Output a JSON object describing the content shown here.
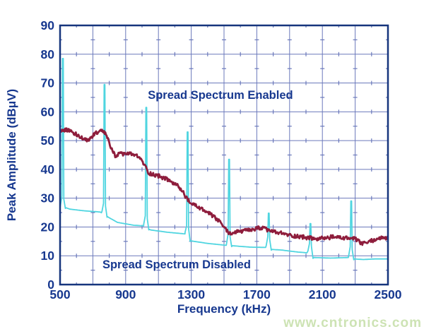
{
  "watermark": "www.cntronics.com",
  "colors": {
    "background": "#ffffff",
    "axis_border": "#16357d",
    "grid": "#6b79bb",
    "label_text": "#17388f",
    "series_enabled": "#8e1d3c",
    "series_disabled": "#4fd5e0",
    "watermark": "#cde3b4"
  },
  "chart_data": {
    "type": "line",
    "title": "",
    "xlabel": "Frequency (kHz)",
    "ylabel": "Peak Amplitude (dBμV)",
    "xlim": [
      500,
      2500
    ],
    "ylim": [
      0,
      90
    ],
    "x_tick_labels": [
      500,
      900,
      1300,
      1700,
      2100,
      2500
    ],
    "x_gridline_step_khz": 200,
    "x_minor_tick_step_khz": 100,
    "y_tick_labels": [
      0,
      10,
      20,
      30,
      40,
      50,
      60,
      70,
      80,
      90
    ],
    "y_minor_tick_step_db": 5,
    "grid": "on",
    "legend_position": "none",
    "annotations": [
      {
        "text": "Spread Spectrum Enabled",
        "x_khz": 1478,
        "y_db": 64.5
      },
      {
        "text": "Spread Spectrum Disabled",
        "x_khz": 1211,
        "y_db": 5.6
      }
    ],
    "series": [
      {
        "name": "Spread Spectrum Enabled",
        "style": "noisy-band",
        "color_key": "series_enabled",
        "noise_amplitude_db": 0.7,
        "sample_step_khz": 4,
        "trend": [
          [
            500,
            53.5
          ],
          [
            545,
            53.8
          ],
          [
            580,
            52.8
          ],
          [
            615,
            51.6
          ],
          [
            650,
            50.2
          ],
          [
            670,
            50.0
          ],
          [
            695,
            51.5
          ],
          [
            720,
            52.8
          ],
          [
            755,
            53.2
          ],
          [
            780,
            52.2
          ],
          [
            795,
            50.0
          ],
          [
            815,
            46.8
          ],
          [
            835,
            44.8
          ],
          [
            860,
            45.2
          ],
          [
            900,
            45.5
          ],
          [
            950,
            45.2
          ],
          [
            990,
            43.8
          ],
          [
            1015,
            41.5
          ],
          [
            1040,
            38.8
          ],
          [
            1070,
            38.2
          ],
          [
            1110,
            37.6
          ],
          [
            1160,
            36.3
          ],
          [
            1210,
            34.6
          ],
          [
            1250,
            32.2
          ],
          [
            1275,
            29.6
          ],
          [
            1300,
            28.0
          ],
          [
            1330,
            27.4
          ],
          [
            1370,
            26.0
          ],
          [
            1410,
            24.6
          ],
          [
            1450,
            23.0
          ],
          [
            1490,
            20.8
          ],
          [
            1520,
            18.4
          ],
          [
            1545,
            17.7
          ],
          [
            1575,
            18.3
          ],
          [
            1620,
            18.6
          ],
          [
            1670,
            18.9
          ],
          [
            1720,
            19.8
          ],
          [
            1765,
            19.0
          ],
          [
            1810,
            18.2
          ],
          [
            1860,
            17.7
          ],
          [
            1910,
            17.0
          ],
          [
            1960,
            16.7
          ],
          [
            2010,
            16.3
          ],
          [
            2060,
            15.8
          ],
          [
            2110,
            16.1
          ],
          [
            2160,
            16.5
          ],
          [
            2210,
            16.3
          ],
          [
            2260,
            16.1
          ],
          [
            2300,
            15.8
          ],
          [
            2345,
            14.1
          ],
          [
            2390,
            15.0
          ],
          [
            2445,
            16.1
          ],
          [
            2500,
            16.2
          ]
        ]
      },
      {
        "name": "Spread Spectrum Disabled",
        "style": "spiky",
        "color_key": "series_disabled",
        "baseline": [
          [
            500,
            26.5
          ],
          [
            530,
            26.8
          ],
          [
            560,
            26.2
          ],
          [
            650,
            25.6
          ],
          [
            745,
            25.2
          ],
          [
            800,
            23.2
          ],
          [
            850,
            21.6
          ],
          [
            950,
            20.6
          ],
          [
            1012,
            20.4
          ],
          [
            1050,
            19.0
          ],
          [
            1150,
            18.2
          ],
          [
            1262,
            17.6
          ],
          [
            1295,
            15.2
          ],
          [
            1400,
            14.3
          ],
          [
            1518,
            13.6
          ],
          [
            1548,
            13.5
          ],
          [
            1660,
            13.0
          ],
          [
            1758,
            12.9
          ],
          [
            1790,
            12.2
          ],
          [
            1850,
            12.0
          ],
          [
            1950,
            11.3
          ],
          [
            2014,
            11.0
          ],
          [
            2042,
            9.4
          ],
          [
            2150,
            9.2
          ],
          [
            2262,
            9.4
          ],
          [
            2292,
            8.9
          ],
          [
            2350,
            8.7
          ],
          [
            2420,
            8.9
          ],
          [
            2500,
            8.9
          ]
        ],
        "peaks": [
          [
            517,
            78.5
          ],
          [
            771,
            69.5
          ],
          [
            1026,
            61.5
          ],
          [
            1278,
            53.0
          ],
          [
            1531,
            43.5
          ],
          [
            1773,
            24.8
          ],
          [
            2027,
            21.2
          ],
          [
            2276,
            29.0
          ]
        ]
      }
    ]
  }
}
